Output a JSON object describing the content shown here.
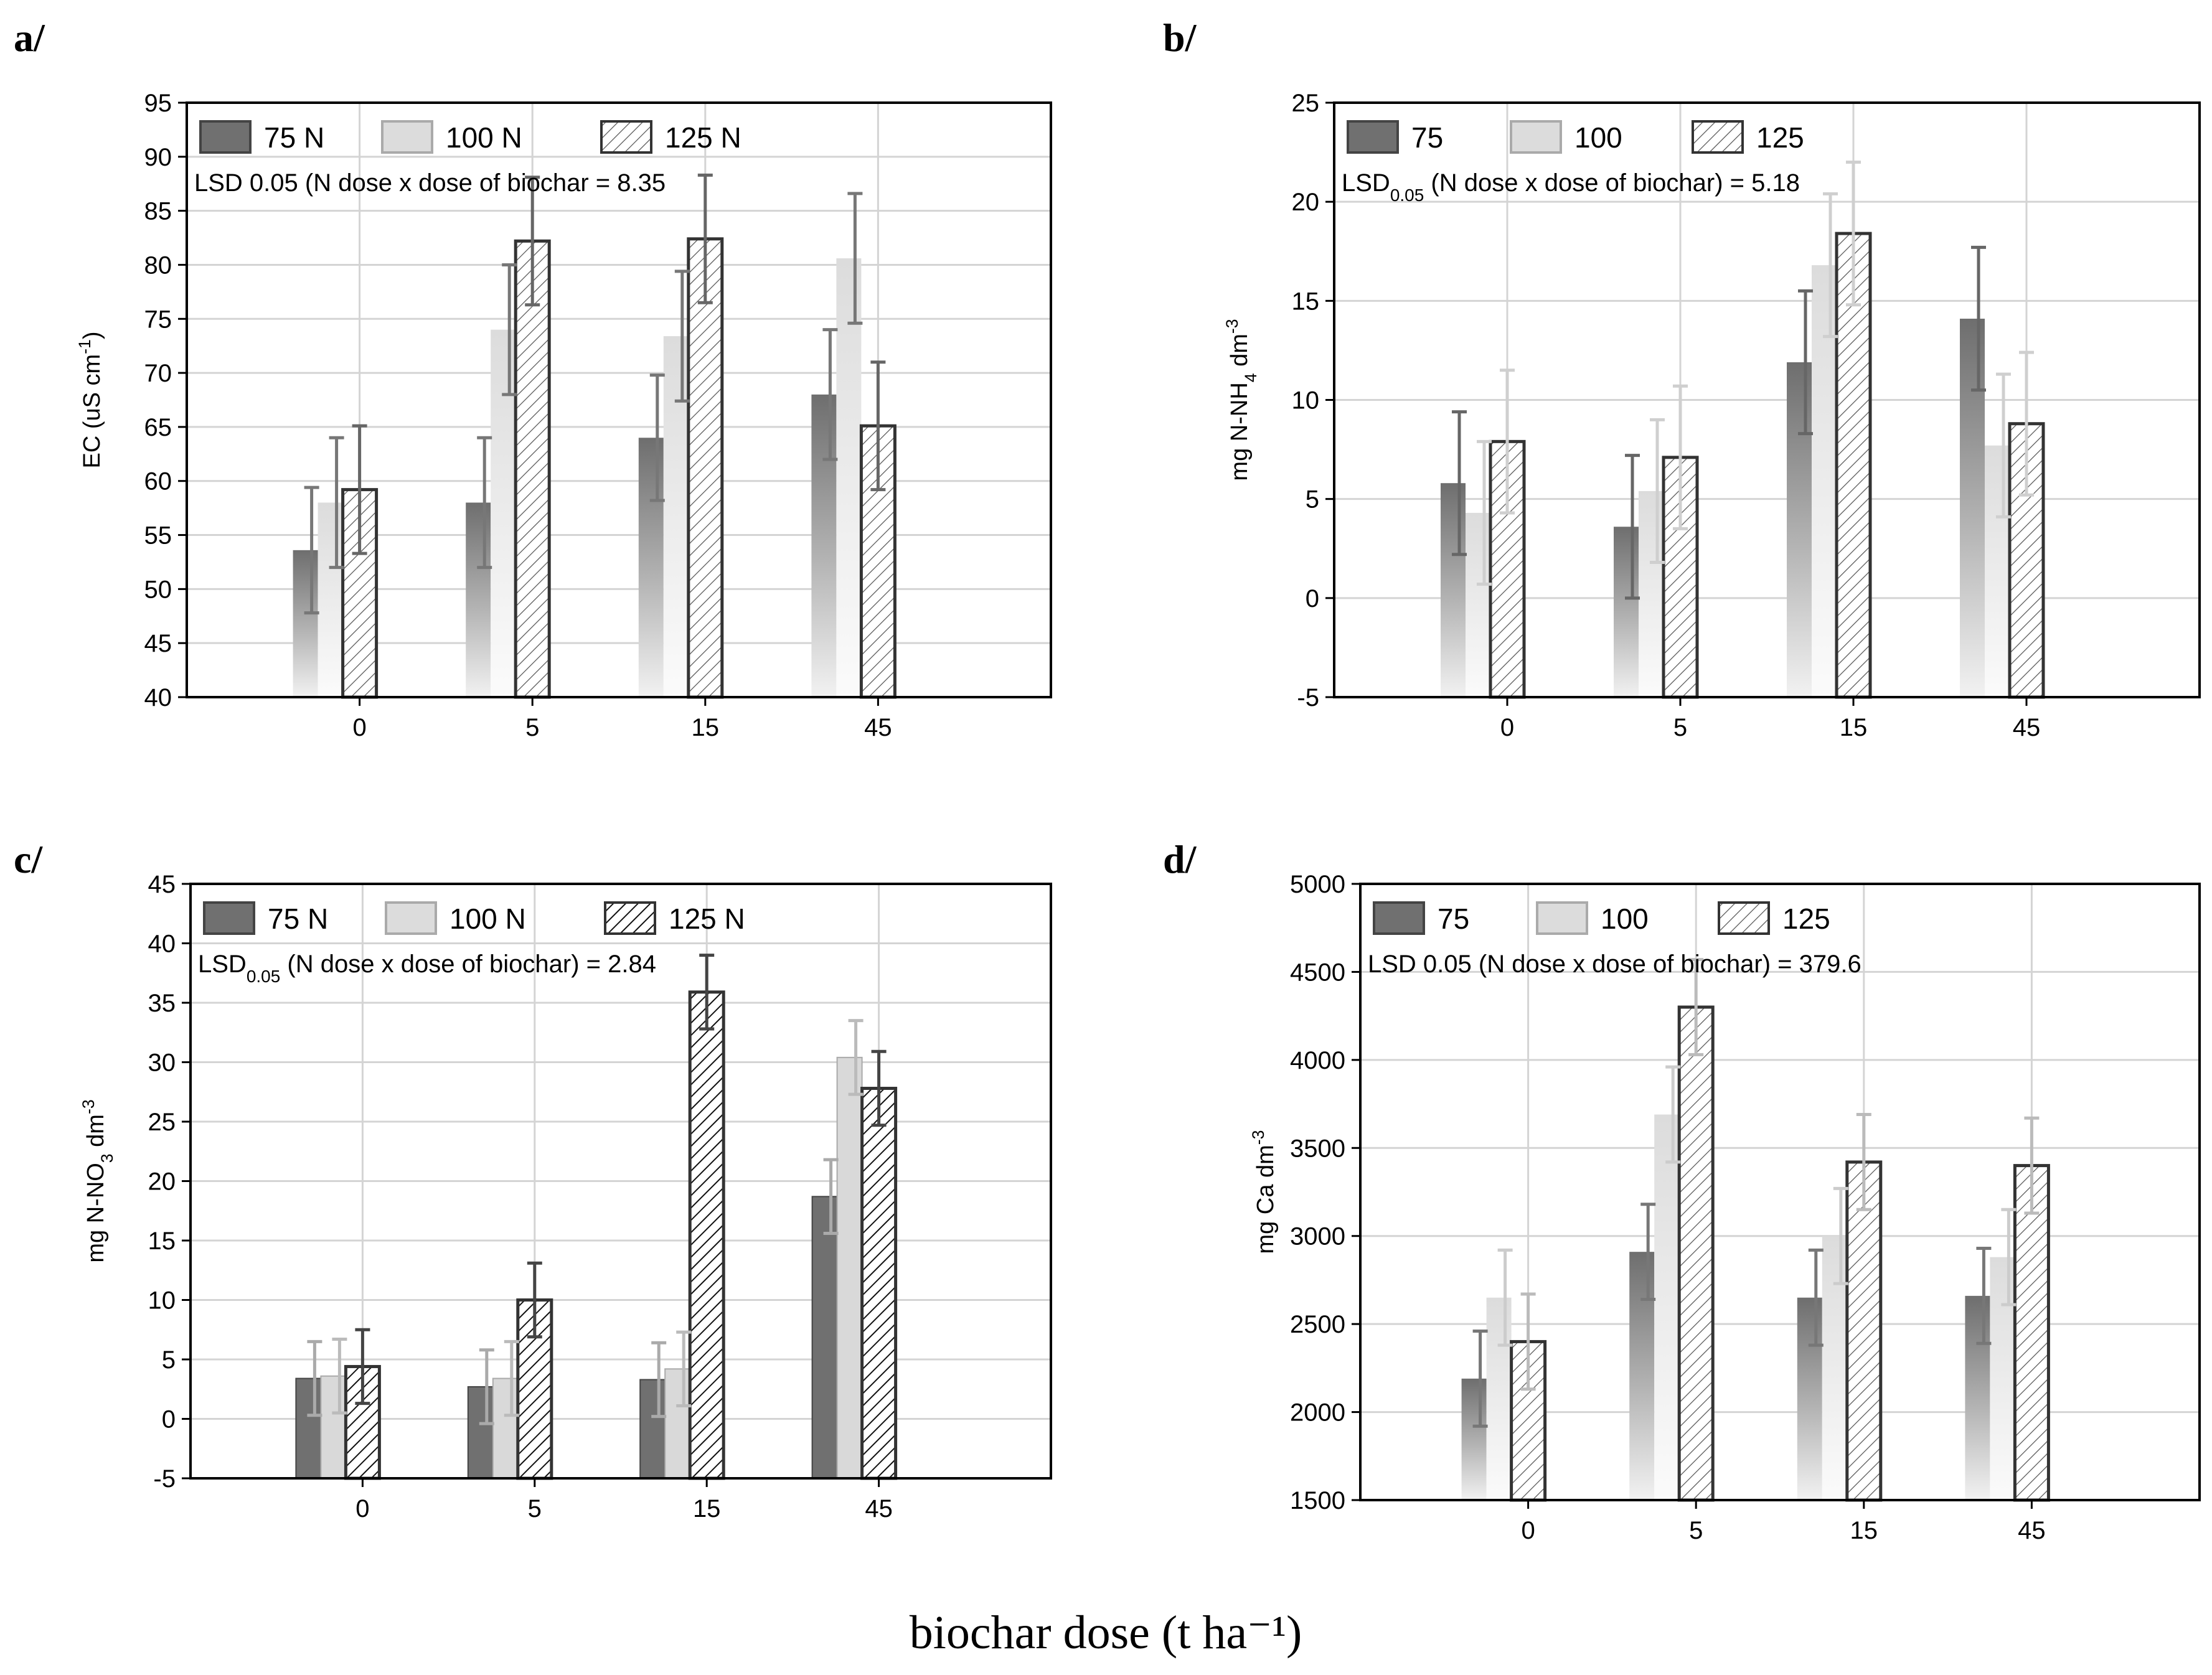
{
  "figure": {
    "xlabel": "biochar dose (t ha⁻¹)"
  },
  "chart_data": [
    {
      "type": "bar",
      "panel_label": "a/",
      "categories": [
        "0",
        "5",
        "15",
        "45"
      ],
      "ylabel": "EC (uS cm⁻¹)",
      "ylim": [
        40,
        95
      ],
      "yticks": [
        40,
        45,
        50,
        55,
        60,
        65,
        70,
        75,
        80,
        85,
        90,
        95
      ],
      "lsd_text": "LSD 0.05 (N dose x dose of biochar = 8.35",
      "grid": true,
      "legend_position": "top-left",
      "series": [
        {
          "name": "75 N",
          "values": [
            53.6,
            58,
            64,
            68
          ],
          "errors": [
            5.8,
            6,
            5.8,
            6
          ]
        },
        {
          "name": "100 N",
          "values": [
            58,
            74,
            73.4,
            80.6
          ],
          "errors": [
            6,
            6,
            6,
            6
          ]
        },
        {
          "name": "125 N",
          "values": [
            59.2,
            82.2,
            82.4,
            65.1
          ],
          "errors": [
            5.9,
            5.9,
            5.9,
            5.9
          ]
        }
      ]
    },
    {
      "type": "bar",
      "panel_label": "b/",
      "categories": [
        "0",
        "5",
        "15",
        "45"
      ],
      "ylabel": "mg N-NH₄ dm⁻³",
      "ylim": [
        -5,
        25
      ],
      "yticks": [
        -5,
        0,
        5,
        10,
        15,
        20,
        25
      ],
      "lsd_text": "LSD0.05 (N dose x dose of biochar) = 5.18",
      "grid": true,
      "legend_position": "top-left",
      "series": [
        {
          "name": "75",
          "values": [
            5.8,
            3.6,
            11.9,
            14.1
          ],
          "errors": [
            3.6,
            3.6,
            3.6,
            3.6
          ]
        },
        {
          "name": "100",
          "values": [
            4.3,
            5.4,
            16.8,
            7.7
          ],
          "errors": [
            3.6,
            3.6,
            3.6,
            3.6
          ]
        },
        {
          "name": "125",
          "values": [
            7.9,
            7.1,
            18.4,
            8.8
          ],
          "errors": [
            3.6,
            3.6,
            3.6,
            3.6
          ]
        }
      ]
    },
    {
      "type": "bar",
      "panel_label": "c/",
      "categories": [
        "0",
        "5",
        "15",
        "45"
      ],
      "ylabel": "mg N-NO₃ dm⁻³",
      "ylim": [
        -5,
        45
      ],
      "yticks": [
        -5,
        0,
        5,
        10,
        15,
        20,
        25,
        30,
        35,
        40,
        45
      ],
      "lsd_text": "LSD0.05 (N dose x dose of biochar) = 2.84",
      "grid": true,
      "legend_position": "top-left",
      "series": [
        {
          "name": "75 N",
          "values": [
            3.4,
            2.7,
            3.3,
            18.7
          ],
          "errors": [
            3.1,
            3.1,
            3.1,
            3.1
          ]
        },
        {
          "name": "100 N",
          "values": [
            3.6,
            3.4,
            4.2,
            30.4
          ],
          "errors": [
            3.1,
            3.1,
            3.1,
            3.1
          ]
        },
        {
          "name": "125 N",
          "values": [
            4.4,
            10,
            35.9,
            27.8
          ],
          "errors": [
            3.1,
            3.1,
            3.1,
            3.1
          ]
        }
      ]
    },
    {
      "type": "bar",
      "panel_label": "d/",
      "categories": [
        "0",
        "5",
        "15",
        "45"
      ],
      "ylabel": "mg Ca dm⁻³",
      "ylim": [
        1500,
        5000
      ],
      "yticks": [
        1500,
        2000,
        2500,
        3000,
        3500,
        4000,
        4500,
        5000
      ],
      "lsd_text": "LSD 0.05 (N dose x dose of biochar) = 379.6",
      "grid": true,
      "legend_position": "top-left",
      "series": [
        {
          "name": "75",
          "values": [
            2190,
            2910,
            2650,
            2660
          ],
          "errors": [
            270,
            270,
            270,
            270
          ]
        },
        {
          "name": "100",
          "values": [
            2650,
            3690,
            3000,
            2880
          ],
          "errors": [
            270,
            270,
            270,
            270
          ]
        },
        {
          "name": "125",
          "values": [
            2400,
            4300,
            3420,
            3400
          ],
          "errors": [
            270,
            270,
            270,
            270
          ]
        }
      ]
    }
  ]
}
